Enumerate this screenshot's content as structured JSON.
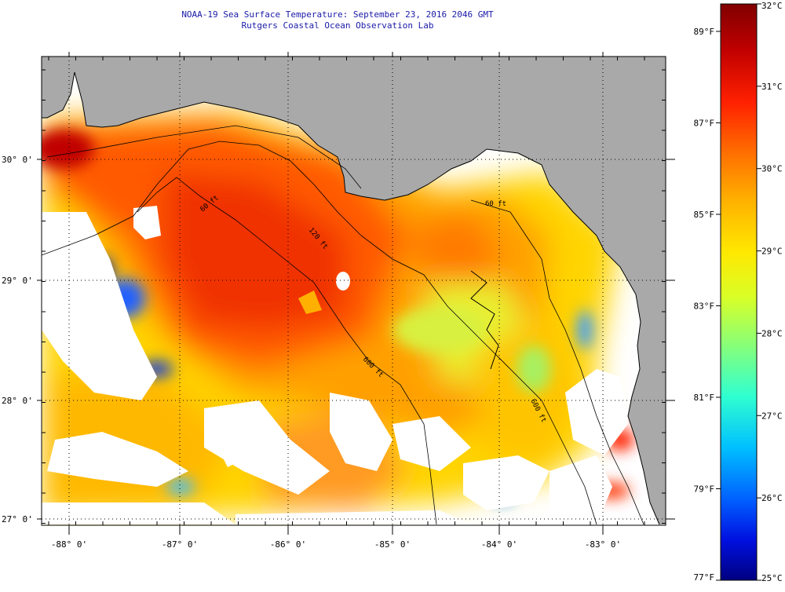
{
  "header": {
    "title": "NOAA-19 Sea Surface Temperature:  September 23, 2016 2046 GMT",
    "subtitle": "Rutgers Coastal Ocean Observation Lab"
  },
  "latitude_labels": [
    "30° 0'",
    "29° 0'",
    "28° 0'",
    "27° 0'"
  ],
  "longitude_labels": [
    "-88° 0'",
    "-87° 0'",
    "-86° 0'",
    "-85° 0'",
    "-84° 0'",
    "-83° 0'"
  ],
  "contour_labels": [
    "60 ft",
    "120 ft",
    "600 ft",
    "600 ft",
    "60 ft"
  ],
  "colorbar": {
    "celsius_labels": [
      "32°C",
      "31°C",
      "30°C",
      "29°C",
      "28°C",
      "27°C",
      "26°C",
      "25°C"
    ],
    "fahrenheit_labels": [
      "89°F",
      "87°F",
      "85°F",
      "83°F",
      "81°F",
      "79°F",
      "77°F"
    ],
    "colors": [
      "#800000",
      "#c00000",
      "#ff2000",
      "#ff7000",
      "#ffb000",
      "#ffe800",
      "#d8ff28",
      "#80ff80",
      "#30ffd0",
      "#00c0ff",
      "#0060ff",
      "#0010e0",
      "#000080"
    ]
  },
  "colors": {
    "land": "#a9a9a9",
    "no_data": "#ffffff",
    "title_text": "#1a1aa8"
  }
}
